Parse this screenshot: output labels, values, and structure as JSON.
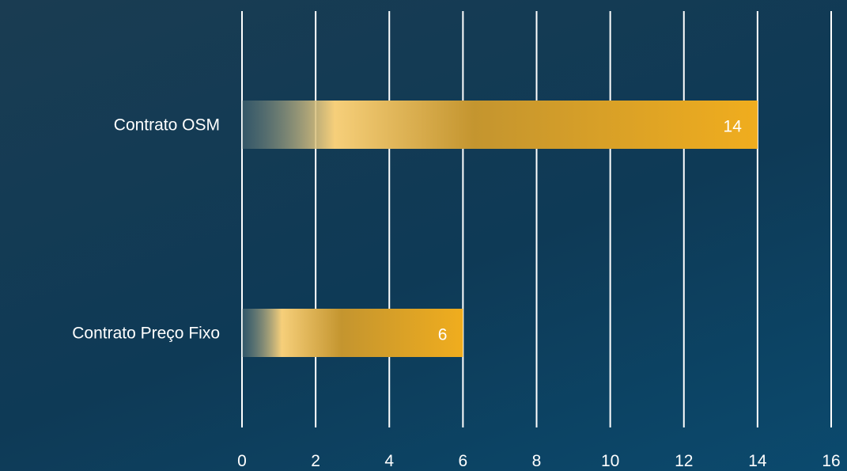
{
  "chart_data": {
    "type": "bar",
    "orientation": "horizontal",
    "categories": [
      "Contrato OSM",
      "Contrato Preço Fixo"
    ],
    "values": [
      14,
      6
    ],
    "data_labels": [
      "14",
      "6"
    ],
    "xlim": [
      0,
      16
    ],
    "x_ticks": [
      0,
      2,
      4,
      6,
      8,
      10,
      12,
      14,
      16
    ],
    "x_tick_labels": [
      "0",
      "2",
      "4",
      "6",
      "8",
      "10",
      "12",
      "14",
      "16"
    ],
    "grid": true,
    "legend": "none",
    "colors": {
      "bar_start": "#6f8a8c",
      "bar_highlight": "#f6cf7a",
      "bar_mid": "#c4952f",
      "bar_end": "#f0ad1e",
      "gridline": "#ffffff",
      "text": "#ffffff"
    }
  }
}
